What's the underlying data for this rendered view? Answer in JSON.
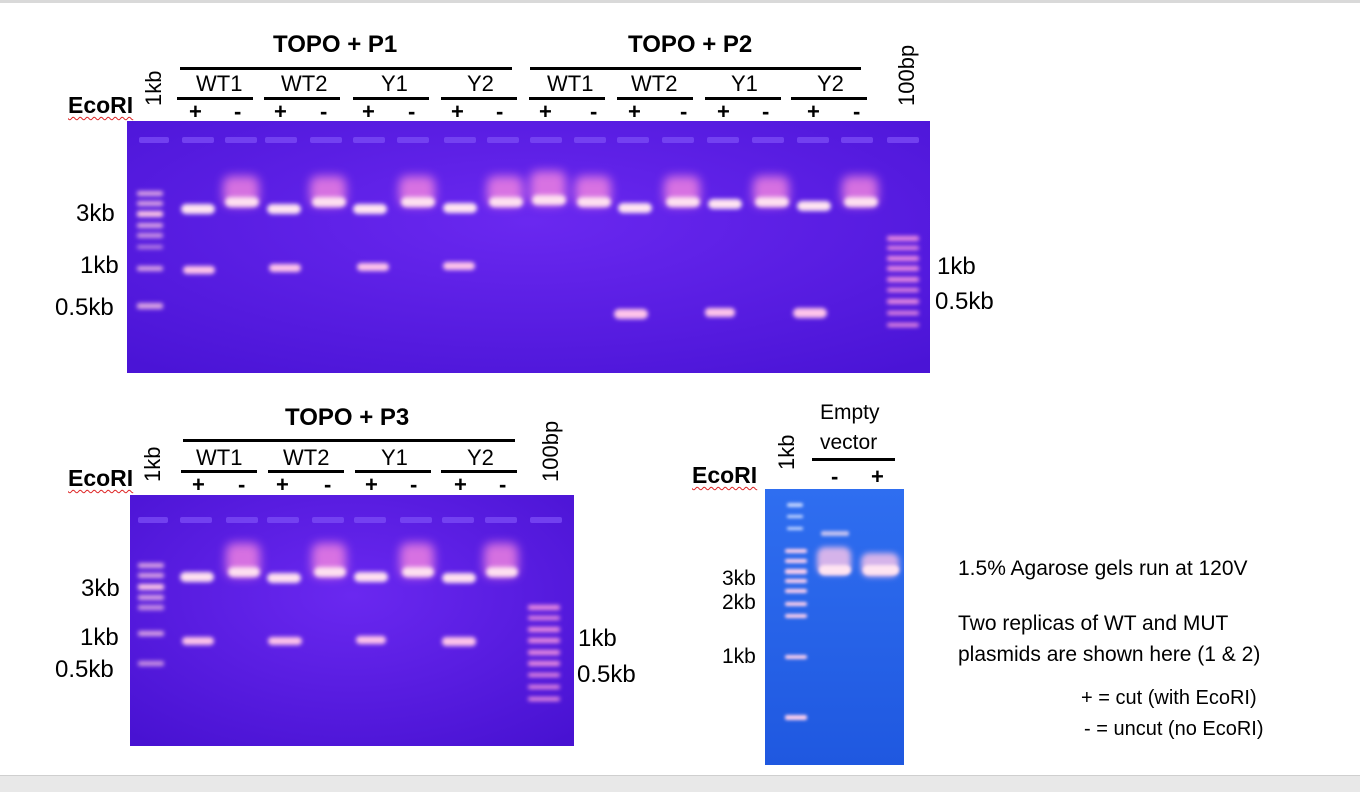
{
  "gel1": {
    "title_p1": "TOPO + P1",
    "title_p2": "TOPO + P2",
    "ladder_left": "1kb",
    "ladder_right": "100bp",
    "enzyme": "EcoRI",
    "samples": [
      "WT1",
      "WT2",
      "Y1",
      "Y2",
      "WT1",
      "WT2",
      "Y1",
      "Y2"
    ],
    "signs": [
      "+",
      "-",
      "+",
      "-",
      "+",
      "-",
      "+",
      "-",
      "+",
      "-",
      "+",
      "-",
      "+",
      "-",
      "+",
      "-"
    ],
    "left_sizes": [
      "3kb",
      "1kb",
      "0.5kb"
    ],
    "right_sizes": [
      "1kb",
      "0.5kb"
    ]
  },
  "gel2": {
    "title": "TOPO + P3",
    "ladder_left": "1kb",
    "ladder_right": "100bp",
    "enzyme": "EcoRI",
    "samples": [
      "WT1",
      "WT2",
      "Y1",
      "Y2"
    ],
    "signs": [
      "+",
      "-",
      "+",
      "-",
      "+",
      "-",
      "+",
      "-"
    ],
    "left_sizes": [
      "3kb",
      "1kb",
      "0.5kb"
    ],
    "right_sizes": [
      "1kb",
      "0.5kb"
    ]
  },
  "gel3": {
    "title_line1": "Empty",
    "title_line2": "vector",
    "ladder": "1kb",
    "enzyme": "EcoRI",
    "signs": [
      "-",
      "+"
    ],
    "sizes": [
      "3kb",
      "2kb",
      "1kb"
    ]
  },
  "notes": {
    "line1": "1.5% Agarose gels run at 120V",
    "line2": "Two replicas of WT and MUT",
    "line3": "plasmids are shown here (1 & 2)",
    "line4": "+ = cut (with EcoRI)",
    "line5": "- = uncut (no EcoRI)"
  },
  "colors": {
    "gel_purple": "#5a1ee6",
    "gel_blue": "#2a6ae8",
    "band": "#ffd6e8"
  }
}
